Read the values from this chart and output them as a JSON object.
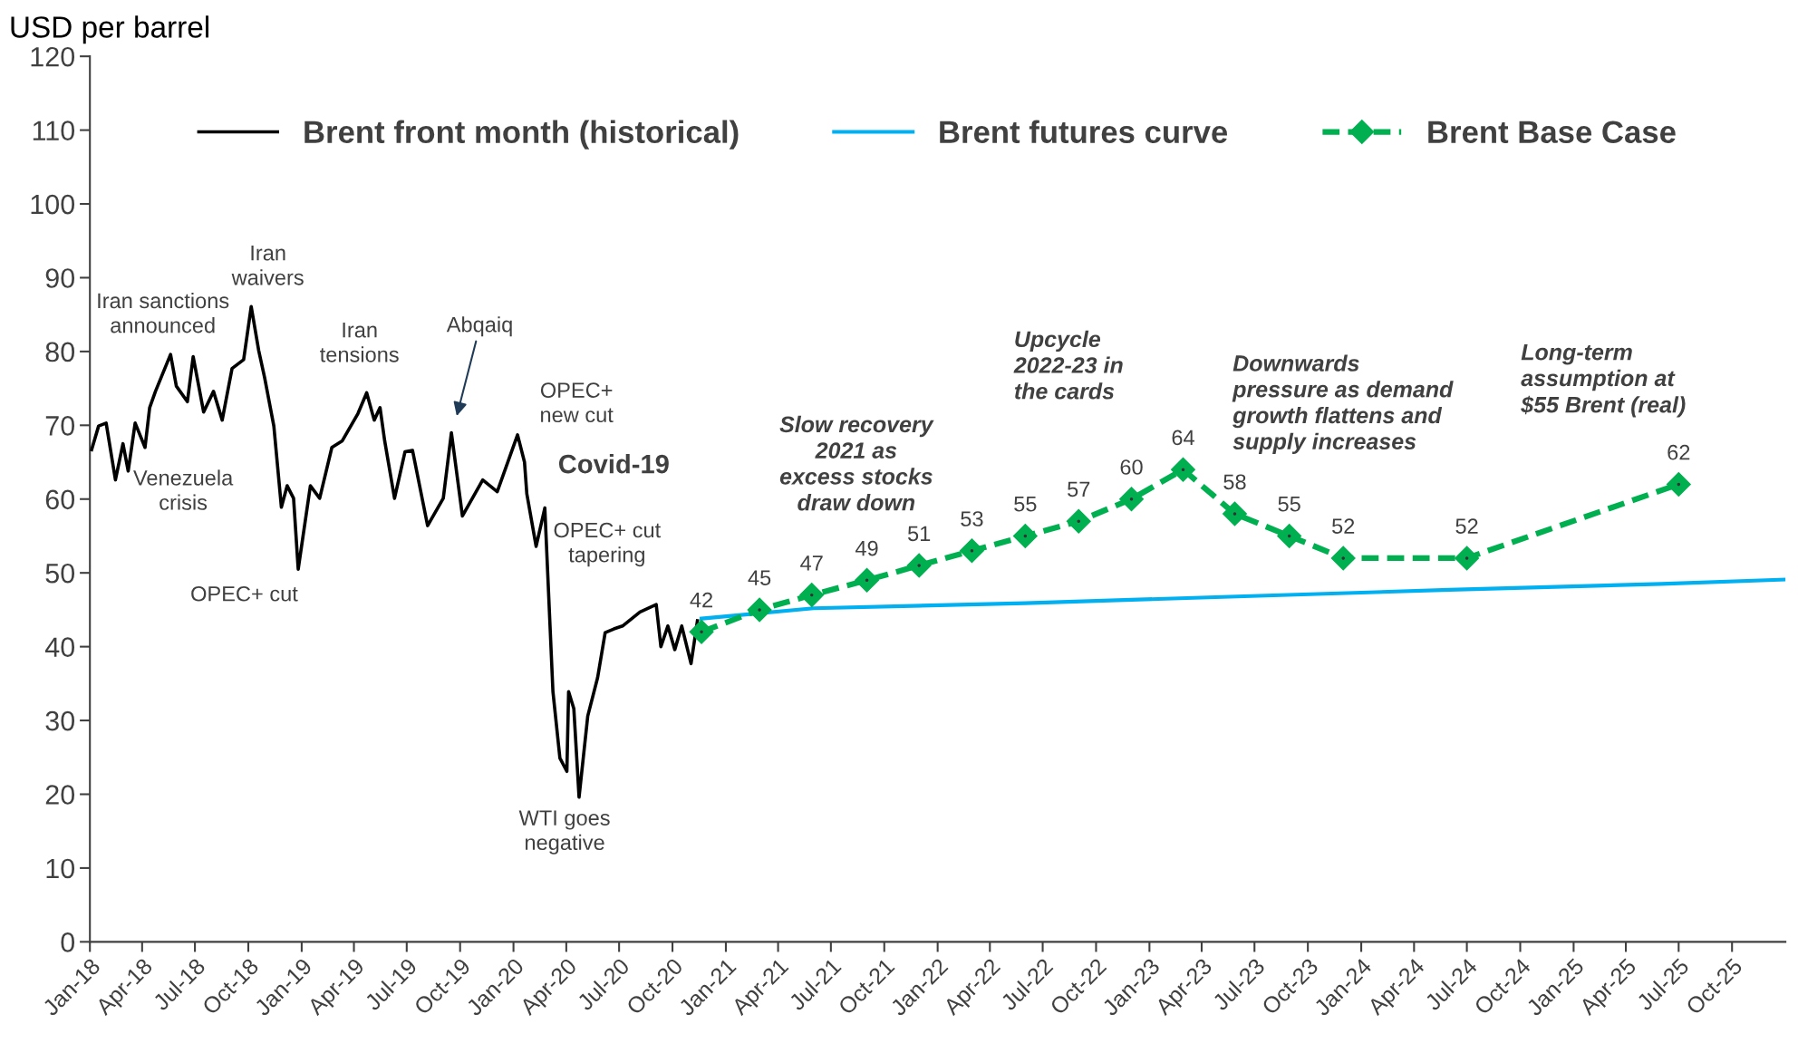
{
  "chart_data": {
    "type": "line",
    "ylabel": "USD per barrel",
    "xlim": [
      "2018-01-01",
      "2026-01-01"
    ],
    "xticks": [
      {
        "value": "2018-01-01",
        "label": "Jan-18"
      },
      {
        "value": "2018-04-01",
        "label": "Apr-18"
      },
      {
        "value": "2018-07-01",
        "label": "Jul-18"
      },
      {
        "value": "2018-10-01",
        "label": "Oct-18"
      },
      {
        "value": "2019-01-01",
        "label": "Jan-19"
      },
      {
        "value": "2019-04-01",
        "label": "Apr-19"
      },
      {
        "value": "2019-07-01",
        "label": "Jul-19"
      },
      {
        "value": "2019-10-01",
        "label": "Oct-19"
      },
      {
        "value": "2020-01-01",
        "label": "Jan-20"
      },
      {
        "value": "2020-04-01",
        "label": "Apr-20"
      },
      {
        "value": "2020-07-01",
        "label": "Jul-20"
      },
      {
        "value": "2020-10-01",
        "label": "Oct-20"
      },
      {
        "value": "2021-01-01",
        "label": "Jan-21"
      },
      {
        "value": "2021-04-01",
        "label": "Apr-21"
      },
      {
        "value": "2021-07-01",
        "label": "Jul-21"
      },
      {
        "value": "2021-10-01",
        "label": "Oct-21"
      },
      {
        "value": "2022-01-01",
        "label": "Jan-22"
      },
      {
        "value": "2022-04-01",
        "label": "Apr-22"
      },
      {
        "value": "2022-07-01",
        "label": "Jul-22"
      },
      {
        "value": "2022-10-01",
        "label": "Oct-22"
      },
      {
        "value": "2023-01-01",
        "label": "Jan-23"
      },
      {
        "value": "2023-04-01",
        "label": "Apr-23"
      },
      {
        "value": "2023-07-01",
        "label": "Jul-23"
      },
      {
        "value": "2023-10-01",
        "label": "Oct-23"
      },
      {
        "value": "2024-01-01",
        "label": "Jan-24"
      },
      {
        "value": "2024-04-01",
        "label": "Apr-24"
      },
      {
        "value": "2024-07-01",
        "label": "Jul-24"
      },
      {
        "value": "2024-10-01",
        "label": "Oct-24"
      },
      {
        "value": "2025-01-01",
        "label": "Jan-25"
      },
      {
        "value": "2025-04-01",
        "label": "Apr-25"
      },
      {
        "value": "2025-07-01",
        "label": "Jul-25"
      },
      {
        "value": "2025-10-01",
        "label": "Oct-25"
      }
    ],
    "ylim": [
      0,
      120
    ],
    "yticks": [
      0,
      10,
      20,
      30,
      40,
      50,
      60,
      70,
      80,
      90,
      100,
      110,
      120
    ],
    "grid": false,
    "legend": "top",
    "series": [
      {
        "name": "Brent front month (historical)",
        "color": "#000000",
        "line_style": "solid",
        "marker": "none",
        "x": [
          "2018-01-04",
          "2018-01-16",
          "2018-01-29",
          "2018-02-14",
          "2018-02-27",
          "2018-03-08",
          "2018-03-20",
          "2018-04-06",
          "2018-04-14",
          "2018-04-24",
          "2018-05-20",
          "2018-05-30",
          "2018-06-18",
          "2018-06-28",
          "2018-07-16",
          "2018-08-02",
          "2018-08-17",
          "2018-09-03",
          "2018-09-23",
          "2018-10-06",
          "2018-10-19",
          "2018-10-29",
          "2018-11-14",
          "2018-11-27",
          "2018-12-07",
          "2018-12-18",
          "2018-12-26",
          "2019-01-16",
          "2019-02-01",
          "2019-02-22",
          "2019-03-12",
          "2019-04-08",
          "2019-04-23",
          "2019-05-06",
          "2019-05-16",
          "2019-05-24",
          "2019-06-10",
          "2019-06-28",
          "2019-07-11",
          "2019-08-06",
          "2019-09-02",
          "2019-09-16",
          "2019-10-05",
          "2019-11-09",
          "2019-12-04",
          "2020-01-08",
          "2020-01-20",
          "2020-01-24",
          "2020-02-09",
          "2020-02-24",
          "2020-03-09",
          "2020-03-21",
          "2020-04-02",
          "2020-04-05",
          "2020-04-14",
          "2020-04-23",
          "2020-05-08",
          "2020-05-25",
          "2020-06-07",
          "2020-06-22",
          "2020-07-07",
          "2020-08-06",
          "2020-09-03",
          "2020-09-11",
          "2020-09-23",
          "2020-10-05",
          "2020-10-17",
          "2020-11-02",
          "2020-11-13"
        ],
        "values": [
          66.7,
          69.9,
          70.3,
          62.6,
          67.5,
          63.8,
          70.3,
          67.0,
          72.4,
          74.6,
          79.6,
          75.3,
          73.2,
          79.3,
          71.8,
          74.6,
          70.7,
          77.7,
          78.9,
          86.1,
          80.1,
          76.5,
          69.9,
          58.9,
          61.8,
          60.1,
          50.5,
          61.8,
          60.1,
          67.0,
          67.9,
          71.6,
          74.4,
          70.7,
          72.4,
          67.9,
          60.1,
          66.4,
          66.6,
          56.4,
          60.1,
          69.0,
          57.7,
          62.6,
          61.0,
          68.7,
          65.0,
          60.7,
          53.6,
          58.8,
          33.9,
          24.9,
          23.1,
          33.9,
          31.6,
          19.6,
          30.6,
          35.8,
          41.9,
          42.4,
          42.8,
          44.7,
          45.7,
          40.0,
          42.8,
          39.6,
          42.8,
          37.7,
          43.5
        ]
      },
      {
        "name": "Brent futures curve",
        "color": "#00b0f0",
        "line_style": "solid",
        "marker": "none",
        "x": [
          "2020-11-20",
          "2021-06-01",
          "2022-06-01",
          "2023-06-01",
          "2024-06-01",
          "2025-06-01",
          "2026-01-01"
        ],
        "values": [
          43.8,
          45.2,
          45.9,
          46.8,
          47.7,
          48.5,
          49.1
        ]
      },
      {
        "name": "Brent Base Case",
        "color": "#00b050",
        "line_style": "dashed",
        "marker": "diamond",
        "x": [
          "2020-11-20",
          "2021-02-28",
          "2021-05-29",
          "2021-09-01",
          "2021-11-30",
          "2022-03-01",
          "2022-06-01",
          "2022-09-01",
          "2022-12-01",
          "2023-02-28",
          "2023-05-28",
          "2023-08-30",
          "2023-12-01",
          "2024-07-01",
          "2025-07-01"
        ],
        "values": [
          42,
          45,
          47,
          49,
          51,
          53,
          55,
          57,
          60,
          64,
          58,
          55,
          52,
          52,
          62
        ],
        "value_labels": [
          "42",
          "45",
          "47",
          "49",
          "51",
          "53",
          "55",
          "57",
          "60",
          "64",
          "58",
          "55",
          "52",
          "52",
          "62"
        ]
      }
    ],
    "annotations": [
      "Iran sanctions\nannounced",
      "Iran\nwaivers",
      "Venezuela\ncrisis",
      "OPEC+ cut",
      "Iran\ntensions",
      "Abqaiq",
      "OPEC+\nnew cut",
      "Covid-19",
      "OPEC+ cut\ntapering",
      "WTI goes\nnegative",
      "Slow recovery\n2021 as\nexcess stocks\ndraw down",
      "Upcycle\n2022-23 in\nthe cards",
      "Downwards\npressure as demand\ngrowth flattens and\nsupply increases",
      "Long-term\nassumption at\n$55 Brent (real)"
    ]
  }
}
